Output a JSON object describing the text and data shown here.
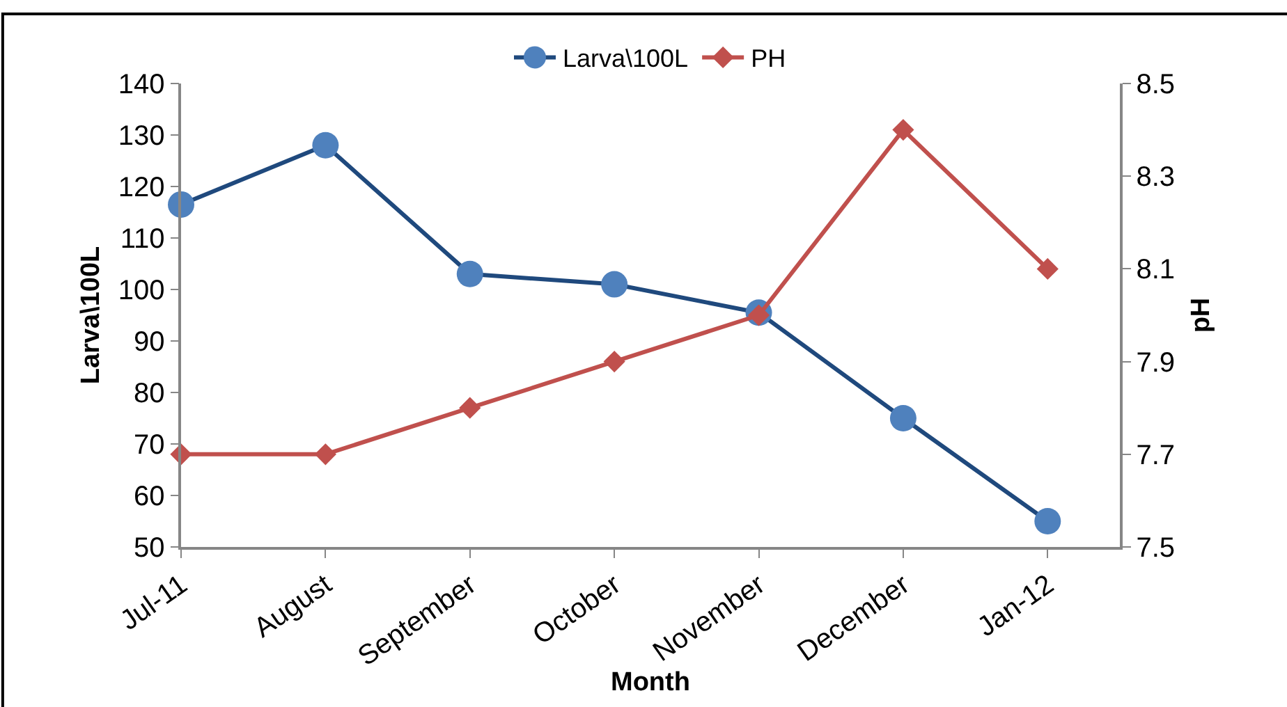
{
  "chart_data": {
    "type": "line",
    "xlabel": "Month",
    "ylabel": "Larva\\100L",
    "y2label": "pH",
    "categories": [
      "Jul-11",
      "August",
      "September",
      "October",
      "November",
      "December",
      "Jan-12"
    ],
    "series": [
      {
        "name": "Larva\\100L",
        "color": "#1f497d",
        "marker": "circle",
        "values": [
          116.5,
          128,
          103,
          101,
          95.5,
          75,
          55
        ]
      },
      {
        "name": "PH",
        "color": "#c0504d",
        "marker": "diamond",
        "axis": "y2",
        "values": [
          7.7,
          7.7,
          7.8,
          7.9,
          8.0,
          8.4,
          8.1
        ]
      }
    ],
    "ylim": [
      50,
      140
    ],
    "yticks": [
      50,
      60,
      70,
      80,
      90,
      100,
      110,
      120,
      130,
      140
    ],
    "y2lim": [
      7.5,
      8.5
    ],
    "y2ticks": [
      {
        "value": 7.5,
        "label": "7.5"
      },
      {
        "value": 7.7,
        "label": "7.7"
      },
      {
        "value": 7.9,
        "label": "7.9"
      },
      {
        "value": 8.1,
        "label": "8.1"
      },
      {
        "value": 8.3,
        "label": "8.3"
      },
      {
        "value": 8.5,
        "label": "8.5"
      }
    ],
    "grid": false,
    "legend": "top"
  }
}
